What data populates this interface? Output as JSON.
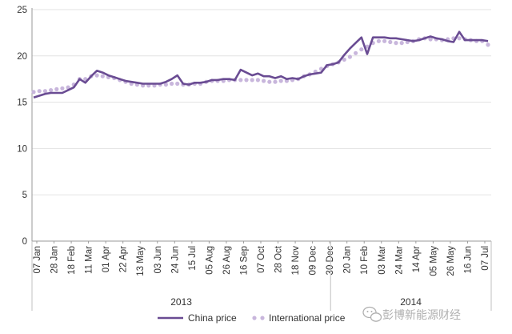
{
  "chart_data": {
    "type": "line",
    "title": "",
    "xlabel": "",
    "ylabel": "",
    "ylim": [
      0,
      25
    ],
    "yticks": [
      0,
      5,
      10,
      15,
      20,
      25
    ],
    "grid": "horizontal",
    "legend_position": "bottom",
    "x_tick_labels": [
      "07 Jan",
      "28 Jan",
      "18 Feb",
      "11 Mar",
      "01 Apr",
      "22 Apr",
      "13 May",
      "03 Jun",
      "24 Jun",
      "15 Jul",
      "05 Aug",
      "26 Aug",
      "16 Sep",
      "07 Oct",
      "28 Oct",
      "18 Nov",
      "09 Dec",
      "30 Dec",
      "20 Jan",
      "10 Feb",
      "03 Mar",
      "24 Mar",
      "14 Apr",
      "05 May",
      "26 May",
      "16 Jun",
      "07 Jul"
    ],
    "year_groups": [
      {
        "label": "2013",
        "from_tick": 0,
        "to_tick": 17
      },
      {
        "label": "2014",
        "from_tick": 17,
        "to_tick": 26
      }
    ],
    "series": [
      {
        "name": "China price",
        "style": "solid",
        "color": "#6a4c93",
        "values": [
          15.5,
          15.7,
          15.9,
          16.0,
          16.0,
          16.0,
          16.3,
          16.6,
          17.5,
          17.1,
          17.8,
          18.4,
          18.2,
          17.9,
          17.7,
          17.5,
          17.3,
          17.2,
          17.1,
          17.0,
          17.0,
          17.0,
          17.0,
          17.2,
          17.5,
          17.9,
          17.0,
          16.9,
          17.1,
          17.1,
          17.2,
          17.4,
          17.4,
          17.5,
          17.5,
          17.4,
          18.5,
          18.2,
          17.9,
          18.1,
          17.8,
          17.8,
          17.6,
          17.8,
          17.5,
          17.6,
          17.5,
          17.8,
          18.0,
          18.1,
          18.2,
          19.0,
          19.1,
          19.3,
          20.1,
          20.8,
          21.4,
          22.0,
          20.2,
          22.0,
          22.0,
          22.0,
          21.9,
          21.9,
          21.8,
          21.7,
          21.6,
          21.7,
          21.9,
          22.1,
          21.9,
          21.8,
          21.6,
          21.5,
          22.6,
          21.7,
          21.7,
          21.7,
          21.7,
          21.6
        ]
      },
      {
        "name": "International price",
        "style": "dotted",
        "color": "#c8b6dc",
        "values": [
          16.1,
          16.2,
          16.2,
          16.3,
          16.4,
          16.5,
          16.6,
          16.9,
          17.5,
          17.5,
          17.8,
          17.9,
          17.8,
          17.7,
          17.6,
          17.4,
          17.2,
          17.0,
          16.9,
          16.8,
          16.8,
          16.8,
          16.9,
          16.9,
          17.0,
          17.0,
          16.9,
          16.9,
          17.0,
          17.0,
          17.2,
          17.3,
          17.3,
          17.3,
          17.4,
          17.4,
          17.4,
          17.4,
          17.4,
          17.4,
          17.3,
          17.2,
          17.2,
          17.3,
          17.3,
          17.4,
          17.5,
          17.8,
          18.0,
          18.3,
          18.6,
          18.9,
          19.1,
          19.3,
          19.6,
          19.9,
          20.3,
          20.7,
          21.0,
          21.4,
          21.6,
          21.6,
          21.5,
          21.4,
          21.4,
          21.5,
          21.6,
          21.8,
          21.9,
          21.8,
          21.8,
          21.7,
          21.8,
          21.9,
          21.9,
          21.8,
          21.7,
          21.6,
          21.6,
          21.2
        ]
      }
    ]
  },
  "watermark": {
    "text": "彭博新能源财经",
    "logo_icon": "wechat-logo-icon"
  }
}
